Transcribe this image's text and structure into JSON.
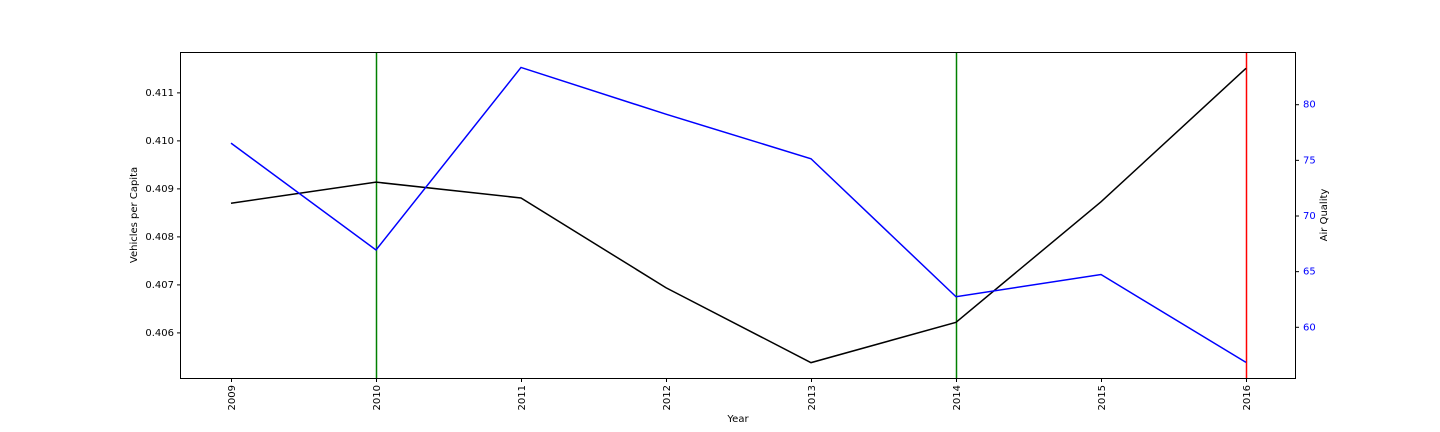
{
  "chart_data": {
    "type": "line",
    "categories": [
      "2009",
      "2010",
      "2011",
      "2012",
      "2013",
      "2014",
      "2015",
      "2016"
    ],
    "xlabel": "Year",
    "ylabel": "Vehicles per Capita",
    "y2label": "Air Quality",
    "ylim": [
      0.40505,
      0.41182
    ],
    "y2lim": [
      55.4,
      84.6
    ],
    "yticks": [
      "0.406",
      "0.407",
      "0.408",
      "0.409",
      "0.410",
      "0.411"
    ],
    "y2ticks": [
      "60",
      "65",
      "70",
      "75",
      "80"
    ],
    "grid": false,
    "series": [
      {
        "axis": "left",
        "color": "#000000",
        "values": [
          0.40869,
          0.40913,
          0.4088,
          0.40693,
          0.40537,
          0.40621,
          0.40872,
          0.4115
        ]
      },
      {
        "axis": "right",
        "color": "#0000ff",
        "values": [
          76.5,
          66.9,
          83.3,
          79.1,
          75.1,
          62.7,
          64.7,
          56.8
        ]
      }
    ],
    "vertical_markers": [
      {
        "x": "2010",
        "color": "#008000"
      },
      {
        "x": "2014",
        "color": "#008000"
      },
      {
        "x": "2016",
        "color": "#ff0000"
      }
    ]
  }
}
